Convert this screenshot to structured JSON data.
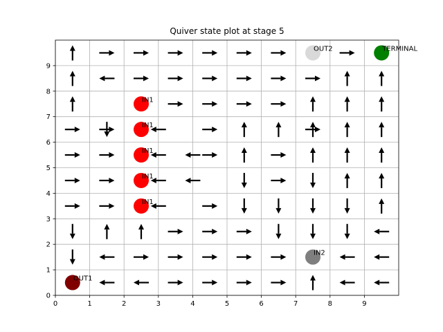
{
  "chart_data": {
    "type": "quiver",
    "title": "Quiver state plot at stage 5",
    "xlabel": "",
    "ylabel": "",
    "xlim": [
      0,
      10
    ],
    "ylim": [
      0,
      10
    ],
    "xticks": [
      0,
      1,
      2,
      3,
      4,
      5,
      6,
      7,
      8,
      9
    ],
    "yticks": [
      0,
      1,
      2,
      3,
      4,
      5,
      6,
      7,
      8,
      9
    ],
    "grid": true,
    "arrow_color": "#000000",
    "arrows": [
      {
        "x": 0.5,
        "y": 9.5,
        "dir": "up"
      },
      {
        "x": 1.5,
        "y": 9.5,
        "dir": "right"
      },
      {
        "x": 2.5,
        "y": 9.5,
        "dir": "right"
      },
      {
        "x": 3.5,
        "y": 9.5,
        "dir": "right"
      },
      {
        "x": 4.5,
        "y": 9.5,
        "dir": "right"
      },
      {
        "x": 5.5,
        "y": 9.5,
        "dir": "right"
      },
      {
        "x": 6.5,
        "y": 9.5,
        "dir": "right"
      },
      {
        "x": 8.5,
        "y": 9.5,
        "dir": "right"
      },
      {
        "x": 0.5,
        "y": 8.5,
        "dir": "up"
      },
      {
        "x": 1.5,
        "y": 8.5,
        "dir": "left"
      },
      {
        "x": 2.5,
        "y": 8.5,
        "dir": "right"
      },
      {
        "x": 3.5,
        "y": 8.5,
        "dir": "right"
      },
      {
        "x": 4.5,
        "y": 8.5,
        "dir": "right"
      },
      {
        "x": 5.5,
        "y": 8.5,
        "dir": "right"
      },
      {
        "x": 6.5,
        "y": 8.5,
        "dir": "right"
      },
      {
        "x": 7.5,
        "y": 8.5,
        "dir": "right"
      },
      {
        "x": 8.5,
        "y": 8.5,
        "dir": "up"
      },
      {
        "x": 9.5,
        "y": 8.5,
        "dir": "up"
      },
      {
        "x": 0.5,
        "y": 7.5,
        "dir": "up"
      },
      {
        "x": 3.5,
        "y": 7.5,
        "dir": "right"
      },
      {
        "x": 4.5,
        "y": 7.5,
        "dir": "right"
      },
      {
        "x": 5.5,
        "y": 7.5,
        "dir": "right"
      },
      {
        "x": 6.5,
        "y": 7.5,
        "dir": "right"
      },
      {
        "x": 7.5,
        "y": 7.5,
        "dir": "up"
      },
      {
        "x": 8.5,
        "y": 7.5,
        "dir": "up"
      },
      {
        "x": 9.5,
        "y": 7.5,
        "dir": "up"
      },
      {
        "x": 1.5,
        "y": 6.5,
        "dir": "down"
      },
      {
        "x": 2.5,
        "y": 6.5,
        "dir": "down"
      },
      {
        "x": 5.5,
        "y": 6.5,
        "dir": "up"
      },
      {
        "x": 6.5,
        "y": 6.5,
        "dir": "up"
      },
      {
        "x": 7.5,
        "y": 6.5,
        "dir": "up"
      },
      {
        "x": 8.5,
        "y": 6.5,
        "dir": "up"
      },
      {
        "x": 9.5,
        "y": 6.5,
        "dir": "up"
      },
      {
        "x": 0.5,
        "y": 6.5,
        "dir": "right"
      },
      {
        "x": 1.5,
        "y": 6.5,
        "dir": "right"
      },
      {
        "x": 3.0,
        "y": 6.5,
        "dir": "left"
      },
      {
        "x": 4.5,
        "y": 6.5,
        "dir": "right"
      },
      {
        "x": 7.5,
        "y": 6.5,
        "dir": "right"
      },
      {
        "x": 0.5,
        "y": 5.5,
        "dir": "right"
      },
      {
        "x": 1.5,
        "y": 5.5,
        "dir": "right"
      },
      {
        "x": 3.0,
        "y": 5.5,
        "dir": "left"
      },
      {
        "x": 4.0,
        "y": 5.5,
        "dir": "left"
      },
      {
        "x": 4.5,
        "y": 5.5,
        "dir": "right"
      },
      {
        "x": 5.5,
        "y": 5.5,
        "dir": "up"
      },
      {
        "x": 6.5,
        "y": 5.5,
        "dir": "right"
      },
      {
        "x": 7.5,
        "y": 5.5,
        "dir": "up"
      },
      {
        "x": 8.5,
        "y": 5.5,
        "dir": "up"
      },
      {
        "x": 9.5,
        "y": 5.5,
        "dir": "up"
      },
      {
        "x": 0.5,
        "y": 4.5,
        "dir": "right"
      },
      {
        "x": 1.5,
        "y": 4.5,
        "dir": "right"
      },
      {
        "x": 3.0,
        "y": 4.5,
        "dir": "left"
      },
      {
        "x": 4.0,
        "y": 4.5,
        "dir": "left"
      },
      {
        "x": 5.5,
        "y": 4.5,
        "dir": "down"
      },
      {
        "x": 6.5,
        "y": 4.5,
        "dir": "right"
      },
      {
        "x": 7.5,
        "y": 4.5,
        "dir": "down"
      },
      {
        "x": 8.5,
        "y": 4.5,
        "dir": "up"
      },
      {
        "x": 9.5,
        "y": 4.5,
        "dir": "up"
      },
      {
        "x": 0.5,
        "y": 3.5,
        "dir": "right"
      },
      {
        "x": 1.5,
        "y": 3.5,
        "dir": "right"
      },
      {
        "x": 3.0,
        "y": 3.5,
        "dir": "left"
      },
      {
        "x": 4.5,
        "y": 3.5,
        "dir": "right"
      },
      {
        "x": 5.5,
        "y": 3.5,
        "dir": "down"
      },
      {
        "x": 6.5,
        "y": 3.5,
        "dir": "down"
      },
      {
        "x": 7.5,
        "y": 3.5,
        "dir": "down"
      },
      {
        "x": 8.5,
        "y": 3.5,
        "dir": "down"
      },
      {
        "x": 9.5,
        "y": 3.5,
        "dir": "up"
      },
      {
        "x": 1.5,
        "y": 2.5,
        "dir": "up"
      },
      {
        "x": 2.5,
        "y": 2.5,
        "dir": "up"
      },
      {
        "x": 3.5,
        "y": 2.5,
        "dir": "right"
      },
      {
        "x": 4.5,
        "y": 2.5,
        "dir": "right"
      },
      {
        "x": 5.5,
        "y": 2.5,
        "dir": "right"
      },
      {
        "x": 6.5,
        "y": 2.5,
        "dir": "down"
      },
      {
        "x": 7.5,
        "y": 2.5,
        "dir": "down"
      },
      {
        "x": 8.5,
        "y": 2.5,
        "dir": "down"
      },
      {
        "x": 9.5,
        "y": 2.5,
        "dir": "left"
      },
      {
        "x": 0.5,
        "y": 2.5,
        "dir": "down"
      },
      {
        "x": 0.5,
        "y": 1.5,
        "dir": "down"
      },
      {
        "x": 1.5,
        "y": 1.5,
        "dir": "left"
      },
      {
        "x": 2.5,
        "y": 1.5,
        "dir": "right"
      },
      {
        "x": 3.5,
        "y": 1.5,
        "dir": "right"
      },
      {
        "x": 4.5,
        "y": 1.5,
        "dir": "right"
      },
      {
        "x": 5.5,
        "y": 1.5,
        "dir": "right"
      },
      {
        "x": 6.5,
        "y": 1.5,
        "dir": "right"
      },
      {
        "x": 8.5,
        "y": 1.5,
        "dir": "left"
      },
      {
        "x": 9.5,
        "y": 1.5,
        "dir": "left"
      },
      {
        "x": 0.5,
        "y": 0.5,
        "dir": "down"
      },
      {
        "x": 1.5,
        "y": 0.5,
        "dir": "left"
      },
      {
        "x": 2.5,
        "y": 0.5,
        "dir": "left"
      },
      {
        "x": 3.5,
        "y": 0.5,
        "dir": "right"
      },
      {
        "x": 4.5,
        "y": 0.5,
        "dir": "right"
      },
      {
        "x": 5.5,
        "y": 0.5,
        "dir": "right"
      },
      {
        "x": 6.5,
        "y": 0.5,
        "dir": "right"
      },
      {
        "x": 7.5,
        "y": 0.5,
        "dir": "up"
      },
      {
        "x": 8.5,
        "y": 0.5,
        "dir": "left"
      },
      {
        "x": 9.5,
        "y": 0.5,
        "dir": "left"
      }
    ],
    "points": [
      {
        "x": 2.5,
        "y": 7.5,
        "color": "#ff0000",
        "label": "IN1"
      },
      {
        "x": 2.5,
        "y": 6.5,
        "color": "#ff0000",
        "label": "IN1"
      },
      {
        "x": 2.5,
        "y": 5.5,
        "color": "#ff0000",
        "label": "IN1"
      },
      {
        "x": 2.5,
        "y": 4.5,
        "color": "#ff0000",
        "label": "IN1"
      },
      {
        "x": 2.5,
        "y": 3.5,
        "color": "#ff0000",
        "label": "IN1"
      },
      {
        "x": 7.5,
        "y": 9.5,
        "color": "#d9d9d9",
        "label": "OUT2"
      },
      {
        "x": 9.5,
        "y": 9.5,
        "color": "#008000",
        "label": "TERMINAL"
      },
      {
        "x": 7.5,
        "y": 1.5,
        "color": "#7f7f7f",
        "label": "IN2"
      },
      {
        "x": 0.5,
        "y": 0.5,
        "color": "#800000",
        "label": "OUT1"
      }
    ]
  }
}
